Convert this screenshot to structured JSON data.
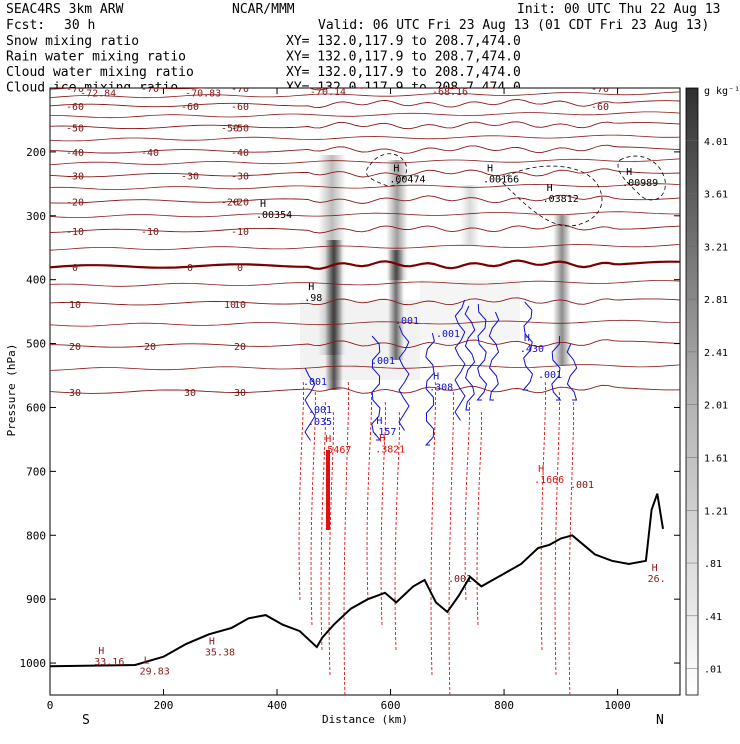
{
  "header": {
    "model": "SEAC4RS   3km ARW",
    "center": "NCAR/MMM",
    "init": "Init: 00 UTC Thu 22 Aug 13",
    "fcst_label": "Fcst:",
    "fcst_value": "30 h",
    "valid": "Valid: 06 UTC Fri 23 Aug 13 (01 CDT Fri 23 Aug 13)"
  },
  "fields": [
    {
      "name": "Snow mixing ratio",
      "xy": "XY= 132.0,117.9 to 208.7,474.0",
      "color": "#000000"
    },
    {
      "name": "Rain water mixing ratio",
      "xy": "XY= 132.0,117.9 to 208.7,474.0",
      "color": "#e01010"
    },
    {
      "name": "Cloud water mixing ratio",
      "xy": "XY= 132.0,117.9 to 208.7,474.0",
      "color": "#1010d0"
    },
    {
      "name": "Cloud ice mixing ratio",
      "xy": "XY= 132.0,117.9 to 208.7,474.0",
      "color": "#000000"
    }
  ],
  "colors": {
    "temperature_contour": "#8b1a1a",
    "zero_line": "#7a0000",
    "rain": "#e01010",
    "cloud_water": "#1010d0",
    "terrain": "#000000"
  },
  "chart_data": {
    "type": "heatmap",
    "xlabel": "Distance (km)",
    "ylabel": "Pressure (hPa)",
    "xlim": [
      0,
      1110
    ],
    "ylim": [
      1050,
      100
    ],
    "x_ticks": [
      0,
      200,
      400,
      600,
      800,
      1000
    ],
    "y_ticks": [
      200,
      300,
      400,
      500,
      600,
      700,
      800,
      900,
      1000
    ],
    "x_endpoints": {
      "left": "S",
      "right": "N"
    },
    "colorbar": {
      "unit": "g kg⁻¹",
      "levels": [
        ".01",
        ".41",
        ".81",
        "1.21",
        "1.61",
        "2.01",
        "2.41",
        "2.81",
        "3.21",
        "3.61",
        "4.01"
      ]
    },
    "temperature_contours": [
      {
        "label": "-70",
        "p": 100
      },
      {
        "label": "-60",
        "p": 128
      },
      {
        "label": "-50",
        "p": 162
      },
      {
        "label": "-40",
        "p": 200
      },
      {
        "label": "-30",
        "p": 237
      },
      {
        "label": "-20",
        "p": 278
      },
      {
        "label": "-10",
        "p": 324
      },
      {
        "label": "0",
        "p": 380
      },
      {
        "label": "10",
        "p": 438
      },
      {
        "label": "20",
        "p": 504
      },
      {
        "label": "30",
        "p": 576
      }
    ],
    "extrema": [
      {
        "type": "L",
        "value": "-72.84",
        "x": 60,
        "p": 110,
        "color": "#8b1a1a"
      },
      {
        "type": "L",
        "value": "-70.83",
        "x": 245,
        "p": 110,
        "color": "#8b1a1a"
      },
      {
        "type": "L",
        "value": "-70.14",
        "x": 465,
        "p": 108,
        "color": "#8b1a1a"
      },
      {
        "type": "L",
        "value": "-68.16",
        "x": 680,
        "p": 108,
        "color": "#8b1a1a"
      },
      {
        "type": "H",
        "value": ".00354",
        "x": 370,
        "p": 300,
        "color": "#000000"
      },
      {
        "type": "H",
        "value": ".00474",
        "x": 605,
        "p": 245,
        "color": "#000000"
      },
      {
        "type": "H",
        "value": ".00166",
        "x": 770,
        "p": 245,
        "color": "#000000"
      },
      {
        "type": "H",
        "value": ".03812",
        "x": 875,
        "p": 275,
        "color": "#000000"
      },
      {
        "type": "H",
        "value": ".00989",
        "x": 1015,
        "p": 250,
        "color": "#000000"
      },
      {
        "type": "H",
        "value": ".98",
        "x": 455,
        "p": 430,
        "color": "#000000"
      },
      {
        "type": "H",
        "value": ".430",
        "x": 835,
        "p": 510,
        "color": "#1010d0"
      },
      {
        "type": "H",
        "value": ".308",
        "x": 675,
        "p": 570,
        "color": "#1010d0"
      },
      {
        "type": "H",
        "value": ".157",
        "x": 575,
        "p": 640,
        "color": "#1010d0"
      },
      {
        "type": "H",
        "value": ".5467",
        "x": 485,
        "p": 668,
        "color": "#e01010"
      },
      {
        "type": "H",
        "value": ".3821",
        "x": 580,
        "p": 667,
        "color": "#e01010"
      },
      {
        "type": "H",
        "value": ".1666",
        "x": 860,
        "p": 715,
        "color": "#e01010"
      },
      {
        "type": "H",
        "value": "26.",
        "x": 1060,
        "p": 870,
        "color": "#8b1a1a"
      },
      {
        "type": "H",
        "value": "33.16",
        "x": 85,
        "p": 1000,
        "color": "#8b1a1a"
      },
      {
        "type": "L",
        "value": "29.83",
        "x": 165,
        "p": 1015,
        "color": "#8b1a1a"
      },
      {
        "type": "H",
        "value": "35.38",
        "x": 280,
        "p": 985,
        "color": "#8b1a1a"
      }
    ],
    "cloud_labels": [
      ".001",
      ".001",
      ".035",
      ".001",
      ".001",
      ".001",
      ".001"
    ],
    "rain_labels": [
      ".001",
      ".001"
    ],
    "terrain": {
      "x": [
        0,
        150,
        200,
        240,
        280,
        320,
        350,
        380,
        410,
        440,
        470,
        480,
        500,
        530,
        560,
        590,
        610,
        640,
        660,
        680,
        700,
        720,
        740,
        760,
        780,
        800,
        830,
        860,
        880,
        900,
        920,
        940,
        960,
        990,
        1020,
        1050,
        1060,
        1070,
        1080
      ],
      "p": [
        1005,
        1003,
        990,
        970,
        955,
        945,
        930,
        925,
        940,
        950,
        975,
        960,
        940,
        915,
        900,
        890,
        905,
        880,
        870,
        905,
        920,
        895,
        865,
        880,
        870,
        860,
        845,
        820,
        815,
        805,
        800,
        815,
        830,
        840,
        845,
        840,
        760,
        735,
        790
      ]
    }
  }
}
